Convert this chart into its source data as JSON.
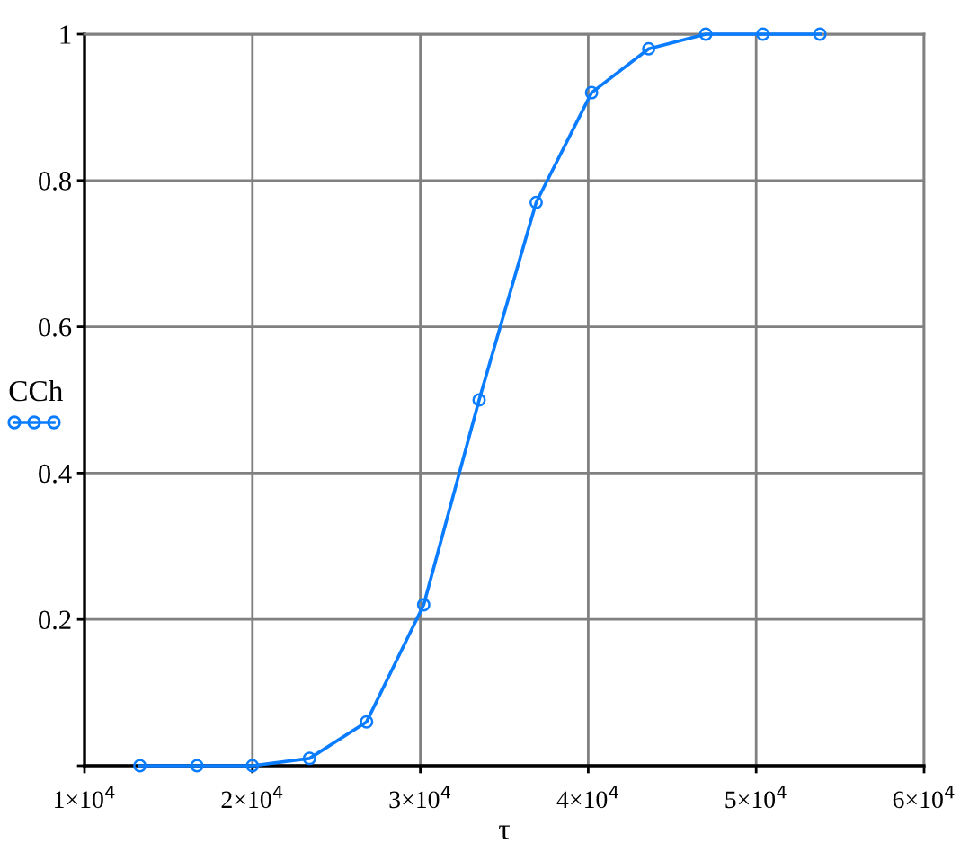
{
  "chart_data": {
    "type": "line",
    "xlabel": "τ",
    "ylabel": "CCh",
    "x": [
      13300,
      16700,
      20000,
      23400,
      26800,
      30200,
      33500,
      36900,
      40200,
      43600,
      47000,
      50400,
      53800
    ],
    "series": [
      {
        "color": "#0a7cff",
        "values": [
          0,
          0,
          0,
          0.01,
          0.06,
          0.22,
          0.5,
          0.77,
          0.92,
          0.98,
          1.0,
          1.0,
          1.0
        ]
      }
    ],
    "xlim": [
      10000,
      60000
    ],
    "xticks": [
      {
        "value": 10000,
        "label": "1×10$^{4}$"
      },
      {
        "value": 20000,
        "label": "2×10$^{4}$"
      },
      {
        "value": 30000,
        "label": "3×10$^{4}$"
      },
      {
        "value": 40000,
        "label": "4×10$^{4}$"
      },
      {
        "value": 50000,
        "label": "5×10$^{4}$"
      },
      {
        "value": 60000,
        "label": "6×10$^{4}$"
      }
    ],
    "ylim": [
      0,
      1
    ],
    "yticks": [
      {
        "value": 0,
        "label": null
      },
      0.2,
      0.4,
      0.6,
      0.8,
      1
    ],
    "grid": true,
    "marker": "circle",
    "line_style": "solid"
  }
}
